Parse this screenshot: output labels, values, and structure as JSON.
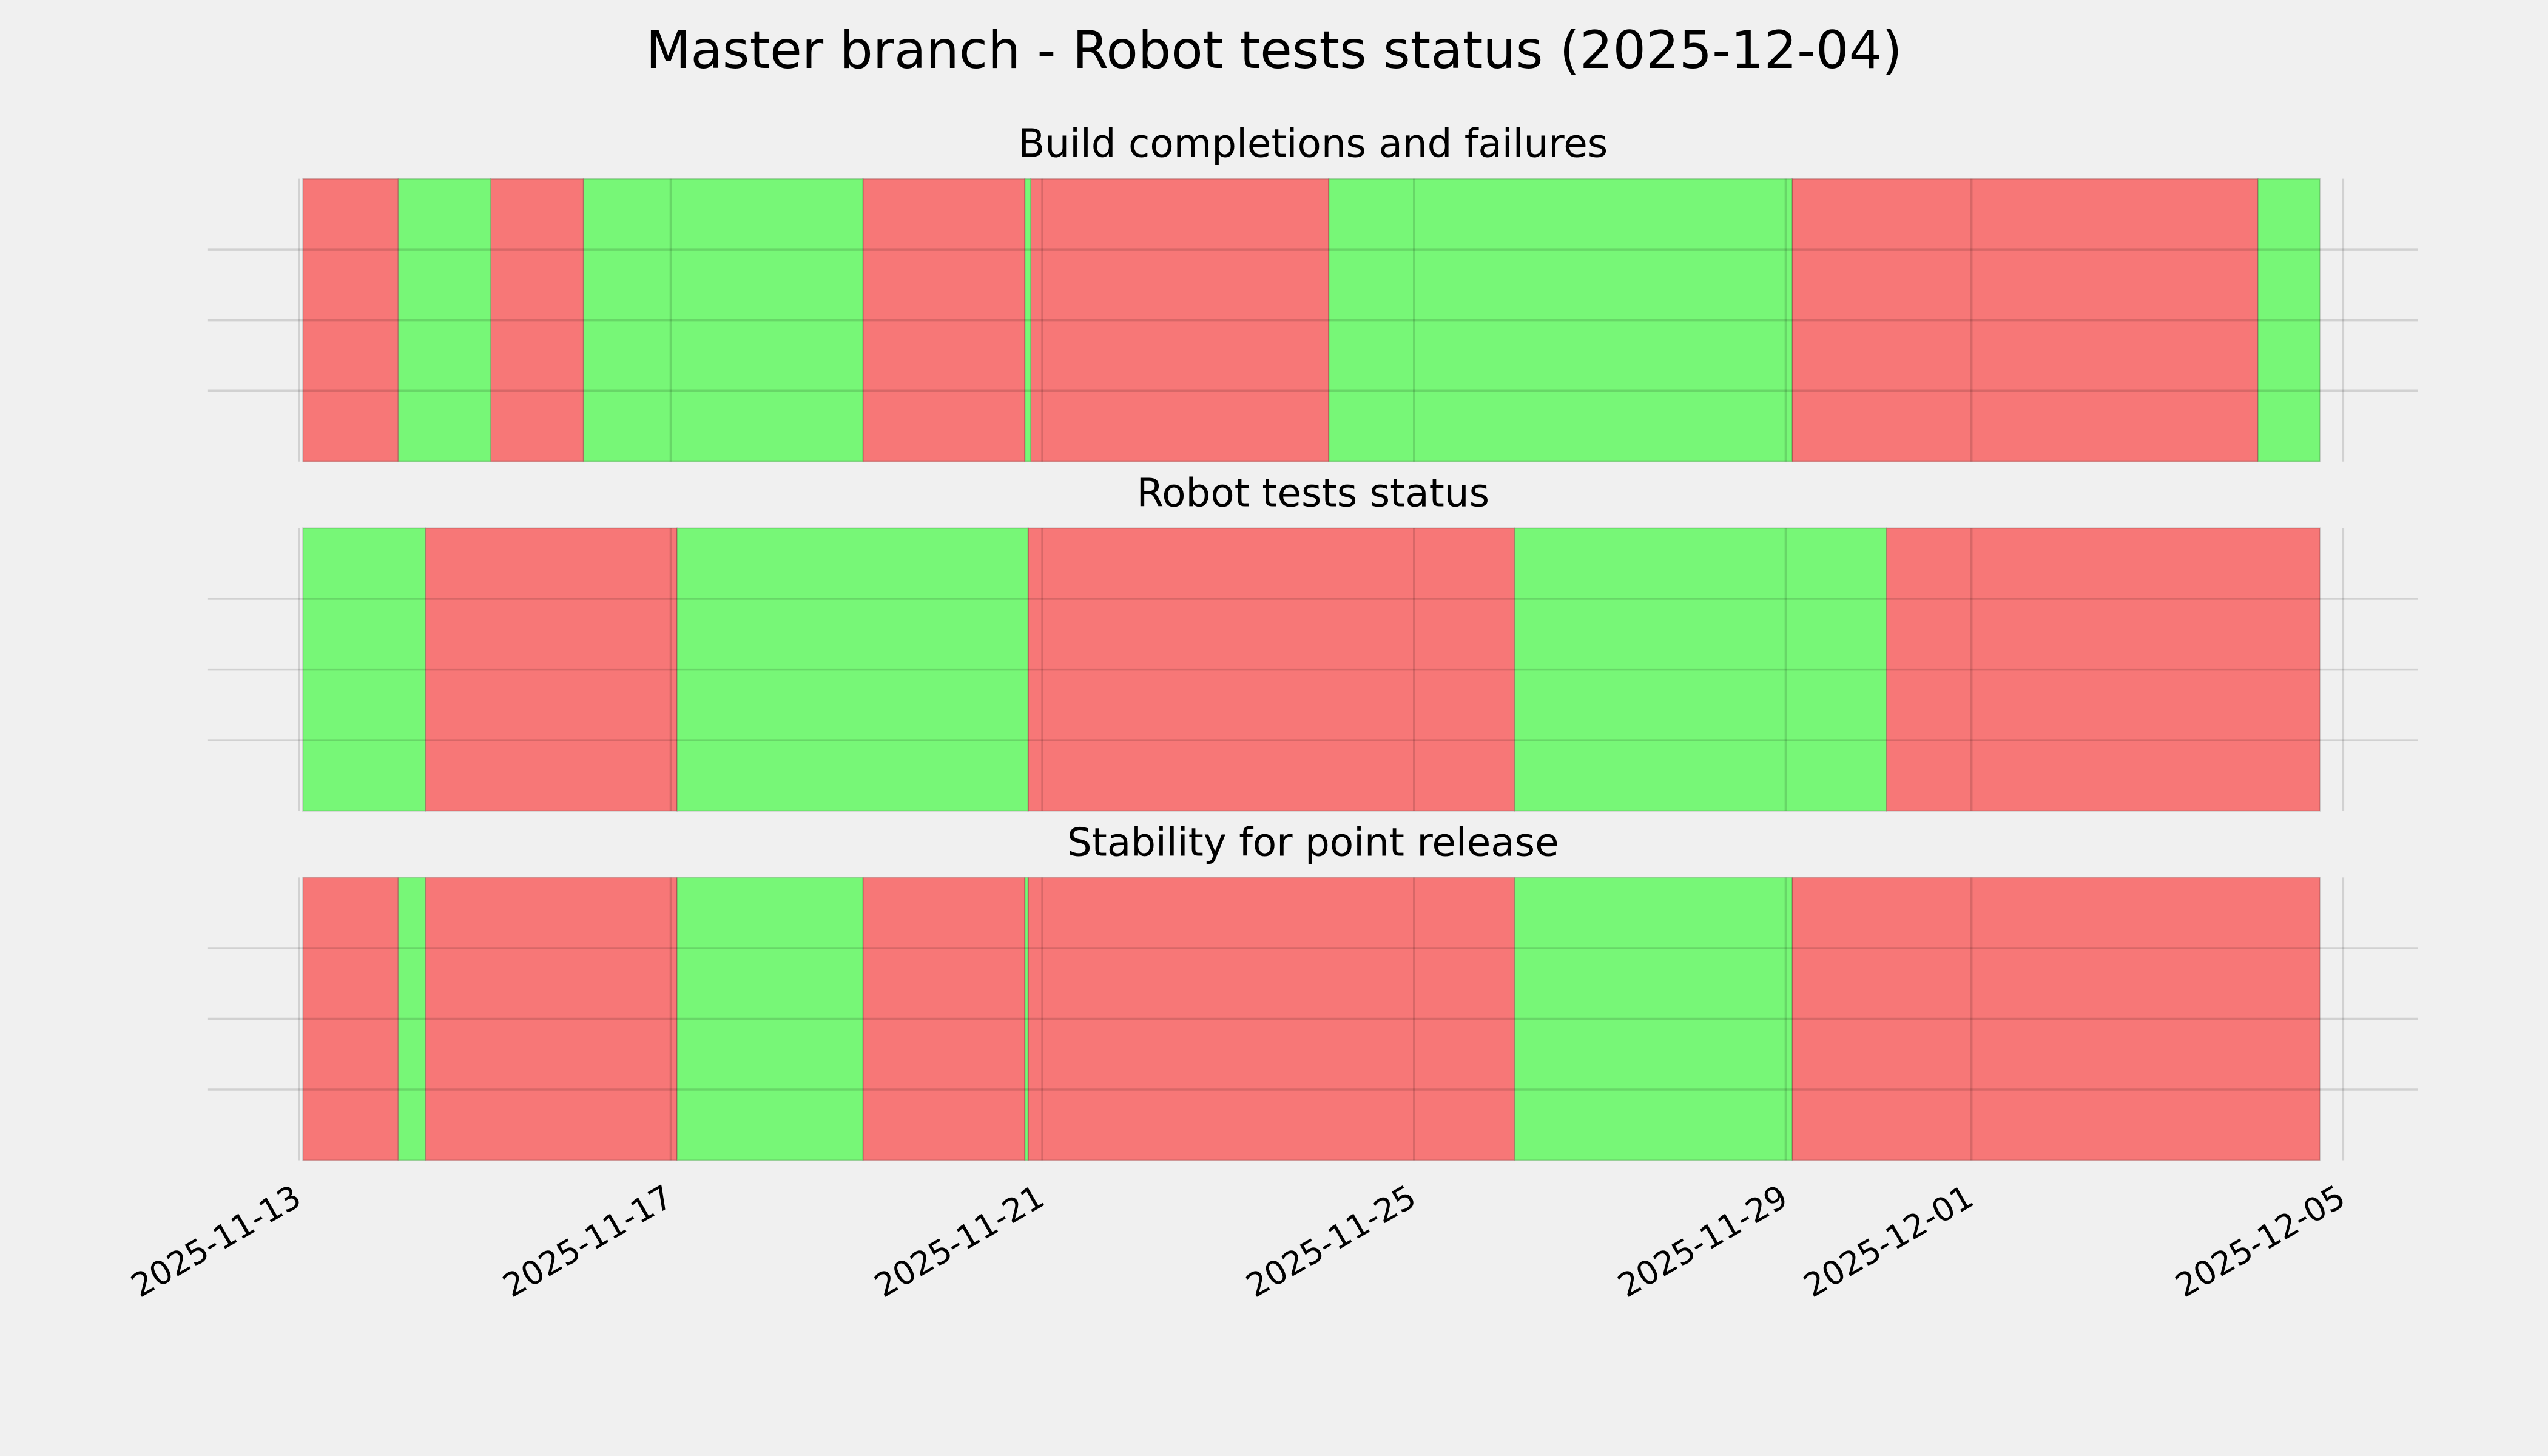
{
  "title": "Master branch - Robot tests status (2025-12-04)",
  "chart_data": [
    {
      "type": "timeline",
      "title": "Build completions and failures",
      "xlim": [
        "2025-11-12T00:30",
        "2025-12-05T19:20"
      ],
      "xticks": [
        "2025-11-13",
        "2025-11-17",
        "2025-11-21",
        "2025-11-25",
        "2025-11-29",
        "2025-12-01",
        "2025-12-05"
      ],
      "ylim": [
        0,
        1
      ],
      "yticks": [
        0.25,
        0.5,
        0.75
      ],
      "grid": true,
      "series": [
        {
          "color": "#f77777",
          "ranges": [
            [
              "2025-11-13T01:00",
              "2025-11-14T01:40"
            ],
            [
              "2025-11-15T01:30",
              "2025-11-16T01:30"
            ],
            [
              "2025-11-19T01:40",
              "2025-11-20T19:30"
            ],
            [
              "2025-11-20T21:00",
              "2025-11-24T02:00"
            ],
            [
              "2025-11-29T01:40",
              "2025-12-04T02:00"
            ]
          ]
        },
        {
          "color": "#77f777",
          "ranges": [
            [
              "2025-11-14T01:40",
              "2025-11-15T01:30"
            ],
            [
              "2025-11-16T01:30",
              "2025-11-19T01:40"
            ],
            [
              "2025-11-20T19:30",
              "2025-11-20T21:00"
            ],
            [
              "2025-11-24T02:00",
              "2025-11-29T01:40"
            ],
            [
              "2025-12-04T02:00",
              "2025-12-04T18:00"
            ]
          ]
        }
      ]
    },
    {
      "type": "timeline",
      "title": "Robot tests status",
      "xlim": [
        "2025-11-12T00:30",
        "2025-12-05T19:20"
      ],
      "xticks": [
        "2025-11-13",
        "2025-11-17",
        "2025-11-21",
        "2025-11-25",
        "2025-11-29",
        "2025-12-01",
        "2025-12-05"
      ],
      "ylim": [
        0,
        1
      ],
      "yticks": [
        0.25,
        0.5,
        0.75
      ],
      "grid": true,
      "series": [
        {
          "color": "#f77777",
          "ranges": [
            [
              "2025-11-14T08:40",
              "2025-11-17T01:40"
            ],
            [
              "2025-11-20T20:20",
              "2025-11-26T02:00"
            ],
            [
              "2025-11-30T02:00",
              "2025-12-04T18:00"
            ]
          ]
        },
        {
          "color": "#77f777",
          "ranges": [
            [
              "2025-11-13T01:00",
              "2025-11-14T08:40"
            ],
            [
              "2025-11-17T01:40",
              "2025-11-20T20:20"
            ],
            [
              "2025-11-26T02:00",
              "2025-11-30T02:00"
            ]
          ]
        }
      ]
    },
    {
      "type": "timeline",
      "title": "Stability for point release",
      "xlim": [
        "2025-11-12T00:30",
        "2025-12-05T19:20"
      ],
      "xticks": [
        "2025-11-13",
        "2025-11-17",
        "2025-11-21",
        "2025-11-25",
        "2025-11-29",
        "2025-12-01",
        "2025-12-05"
      ],
      "ylim": [
        0,
        1
      ],
      "yticks": [
        0.25,
        0.5,
        0.75
      ],
      "grid": true,
      "series": [
        {
          "color": "#f77777",
          "ranges": [
            [
              "2025-11-13T01:00",
              "2025-11-14T01:40"
            ],
            [
              "2025-11-14T08:40",
              "2025-11-17T01:40"
            ],
            [
              "2025-11-19T01:40",
              "2025-11-20T19:30"
            ],
            [
              "2025-11-20T20:20",
              "2025-11-26T02:00"
            ],
            [
              "2025-11-29T01:40",
              "2025-12-04T18:00"
            ]
          ]
        },
        {
          "color": "#77f777",
          "ranges": [
            [
              "2025-11-14T01:40",
              "2025-11-14T08:40"
            ],
            [
              "2025-11-17T01:40",
              "2025-11-19T01:40"
            ],
            [
              "2025-11-20T19:30",
              "2025-11-20T20:20"
            ],
            [
              "2025-11-26T02:00",
              "2025-11-29T01:40"
            ]
          ]
        }
      ]
    }
  ]
}
